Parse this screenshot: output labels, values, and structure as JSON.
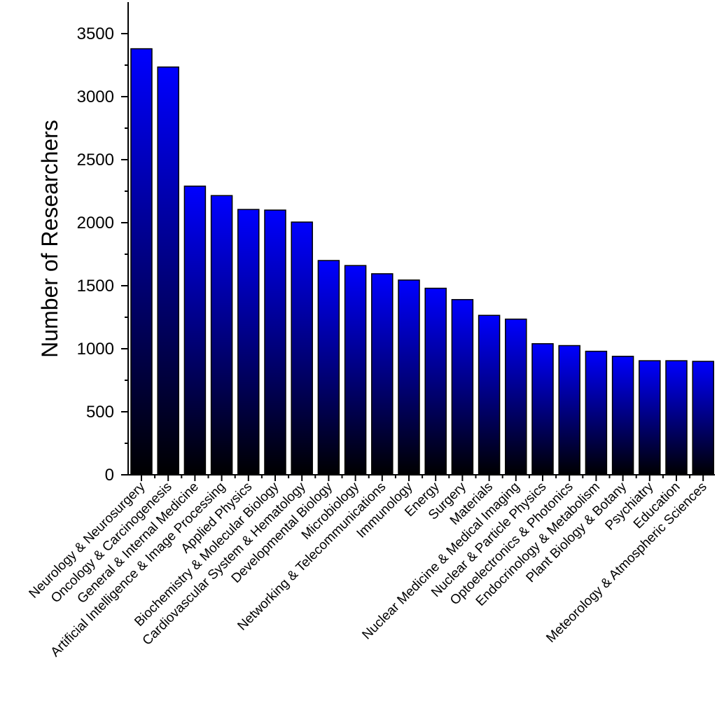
{
  "chart_data": {
    "type": "bar",
    "categories": [
      "Neurology & Neurosurgery",
      "Oncology & Carcinogenesis",
      "General & Internal Medicine",
      "Artificial Intelligence & Image Processing",
      "Applied Physics",
      "Biochemistry & Molecular Biology",
      "Cardiovascular System & Hematology",
      "Developmental Biology",
      "Microbiology",
      "Networking & Telecommunications",
      "Immunology",
      "Energy",
      "Surgery",
      "Materials",
      "Nuclear Medicine & Medical Imaging",
      "Nuclear & Particle Physics",
      "Optoelectronics & Photonics",
      "Endocrinology & Metabolism",
      "Plant Biology & Botany",
      "Psychiatry",
      "Education",
      "Meteorology & Atmospheric Sciences"
    ],
    "values": [
      3380,
      3235,
      2290,
      2215,
      2105,
      2100,
      2005,
      1700,
      1660,
      1595,
      1545,
      1480,
      1390,
      1265,
      1235,
      1040,
      1025,
      980,
      940,
      905,
      905,
      900
    ],
    "ylabel": "Number of Researchers",
    "xlabel": "",
    "ylim": [
      0,
      3750
    ],
    "yticks": [
      0,
      500,
      1000,
      1500,
      2000,
      2500,
      3000,
      3500
    ],
    "grid": false,
    "bar_fill": {
      "top": "#0000ff",
      "bottom": "#000000"
    },
    "bar_stroke": "#000000"
  }
}
